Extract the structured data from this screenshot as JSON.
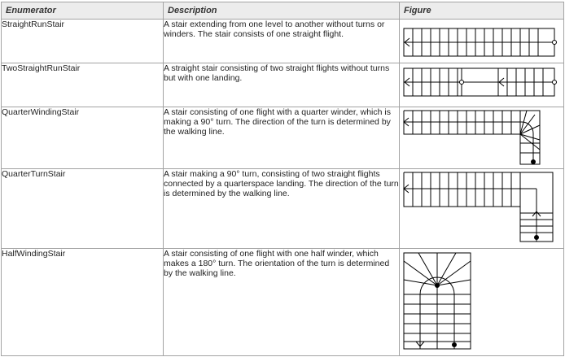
{
  "table": {
    "headers": {
      "enumerator": "Enumerator",
      "description": "Description",
      "figure": "Figure"
    },
    "rows": [
      {
        "enumerator": "StraightRunStair",
        "description": "A stair extending from one level to another without turns or winders. The stair consists of one straight flight.",
        "figure": "straight-run-stair-figure"
      },
      {
        "enumerator": "TwoStraightRunStair",
        "description": "A straight stair consisting of two straight flights without turns but with one landing.",
        "figure": "two-straight-run-stair-figure"
      },
      {
        "enumerator": "QuarterWindingStair",
        "description": "A stair consisting of one flight with a quarter winder, which is making a 90° turn. The direction of the turn is determined by the walking line.",
        "figure": "quarter-winding-stair-figure"
      },
      {
        "enumerator": "QuarterTurnStair",
        "description": "A stair making a 90° turn, consisting of two straight flights connected by a quarterspace landing. The direction of the turn is determined by the walking line.",
        "figure": "quarter-turn-stair-figure"
      },
      {
        "enumerator": "HalfWindingStair",
        "description": "A stair consisting of one flight with one half winder, which makes a 180° turn. The orientation of the turn is determined by the walking line.",
        "figure": "half-winding-stair-figure"
      }
    ]
  }
}
